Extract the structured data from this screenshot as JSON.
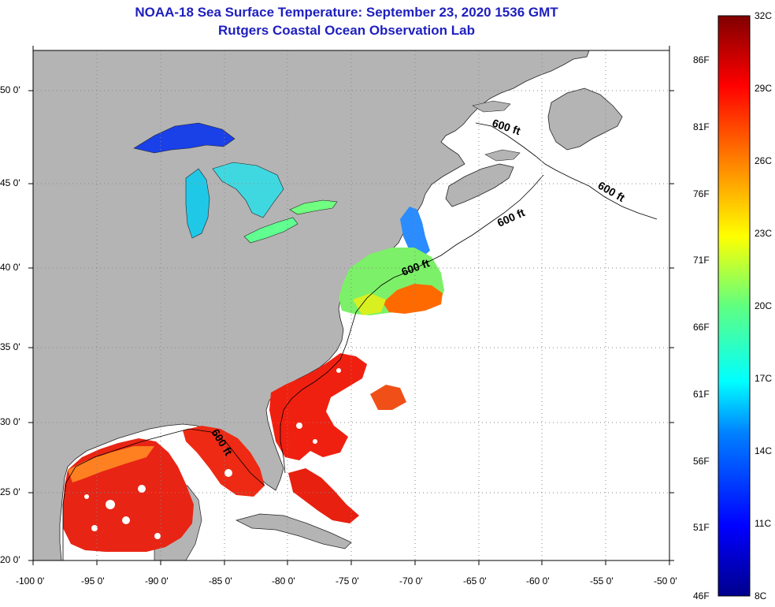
{
  "title": {
    "line1": "NOAA-18 Sea Surface Temperature:  September 23, 2020 1536 GMT",
    "line2": "Rutgers Coastal Ocean Observation Lab"
  },
  "axes": {
    "lat_labels": [
      "50 0'",
      "45 0'",
      "40 0'",
      "35 0'",
      "30 0'",
      "25 0'",
      "20 0'"
    ],
    "lon_labels": [
      "-100 0'",
      "-95 0'",
      "-90 0'",
      "-85 0'",
      "-80 0'",
      "-75 0'",
      "-70 0'",
      "-65 0'",
      "-60 0'",
      "-55 0'",
      "-50 0'"
    ],
    "lat_values": [
      50,
      45,
      40,
      35,
      30,
      25,
      20
    ],
    "lon_values": [
      -100,
      -95,
      -90,
      -85,
      -80,
      -75,
      -70,
      -65,
      -60,
      -55,
      -50
    ]
  },
  "isobath_labels": [
    "600 ft",
    "600 ft",
    "600 ft",
    "600 ft",
    "600 ft"
  ],
  "colorbar": {
    "celsius_labels": [
      "32C",
      "29C",
      "26C",
      "23C",
      "20C",
      "17C",
      "14C",
      "11C",
      "8C"
    ],
    "fahrenheit_labels": [
      "86F",
      "81F",
      "76F",
      "71F",
      "66F",
      "61F",
      "56F",
      "51F",
      "46F"
    ],
    "range_c": [
      8,
      32
    ],
    "range_f": [
      46,
      90
    ]
  },
  "colors": {
    "land": "#b4b4b4",
    "no_data": "#ffffff",
    "title": "#1f1fbf"
  }
}
